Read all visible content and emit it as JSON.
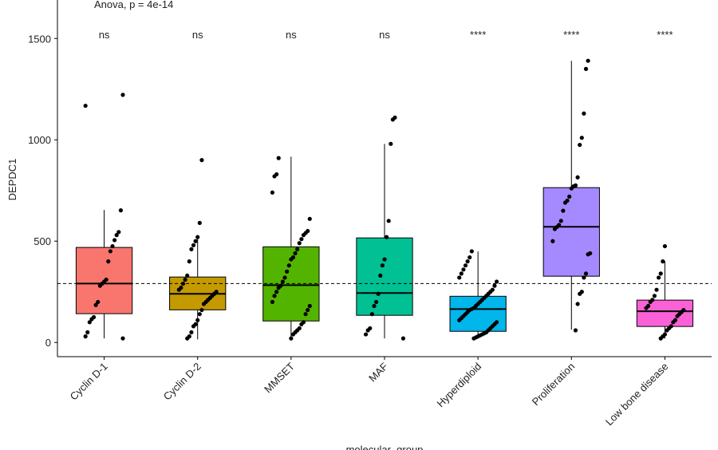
{
  "chart_data": {
    "type": "box",
    "annotation": "Anova, p = 4e-14",
    "ylabel": "DEPDC1",
    "xlabel": "molecular_group",
    "categories": [
      "Cyclin D-1",
      "Cyclin D-2",
      "MMSET",
      "MAF",
      "Hyperdiploid",
      "Proliferation",
      "Low bone disease"
    ],
    "colors": [
      "#F8766D",
      "#C49A00",
      "#53B400",
      "#00C094",
      "#00B6EB",
      "#A58AFF",
      "#FB61D7"
    ],
    "significance": [
      "ns",
      "ns",
      "ns",
      "ns",
      "****",
      "****",
      "****"
    ],
    "boxes": [
      {
        "min": 20,
        "q1": 142,
        "median": 291,
        "q3": 469,
        "max": 654
      },
      {
        "min": 15,
        "q1": 161,
        "median": 240,
        "q3": 323,
        "max": 524
      },
      {
        "min": 20,
        "q1": 106,
        "median": 283,
        "q3": 472,
        "max": 917
      },
      {
        "min": 20,
        "q1": 134,
        "median": 244,
        "q3": 516,
        "max": 980
      },
      {
        "min": 20,
        "q1": 55,
        "median": 165,
        "q3": 228,
        "max": 449
      },
      {
        "min": 63,
        "q1": 327,
        "median": 571,
        "q3": 764,
        "max": 1390
      },
      {
        "min": 20,
        "q1": 79,
        "median": 154,
        "q3": 209,
        "max": 402
      }
    ],
    "points": [
      [
        1168,
        1222,
        652,
        545,
        530,
        505,
        475,
        450,
        400,
        310,
        300,
        290,
        280,
        200,
        185,
        125,
        115,
        100,
        50,
        30,
        20
      ],
      [
        900,
        590,
        520,
        500,
        480,
        460,
        400,
        330,
        310,
        290,
        270,
        260,
        250,
        240,
        230,
        220,
        210,
        200,
        190,
        160,
        140,
        110,
        90,
        80,
        50,
        30,
        20
      ],
      [
        910,
        830,
        820,
        740,
        610,
        550,
        540,
        530,
        510,
        490,
        460,
        440,
        420,
        410,
        380,
        350,
        320,
        300,
        280,
        270,
        250,
        230,
        200,
        180,
        160,
        140,
        100,
        90,
        70,
        60,
        50,
        40,
        20
      ],
      [
        1110,
        1100,
        980,
        600,
        520,
        410,
        380,
        330,
        240,
        200,
        180,
        140,
        70,
        60,
        40,
        20
      ],
      [
        450,
        420,
        400,
        380,
        360,
        340,
        320,
        300,
        280,
        260,
        250,
        240,
        230,
        220,
        210,
        200,
        190,
        180,
        170,
        165,
        160,
        150,
        140,
        130,
        120,
        110,
        100,
        90,
        80,
        70,
        60,
        50,
        45,
        40,
        35,
        30,
        25,
        20
      ],
      [
        1390,
        1350,
        1130,
        1010,
        975,
        815,
        775,
        770,
        760,
        720,
        700,
        690,
        650,
        600,
        580,
        570,
        560,
        500,
        440,
        435,
        340,
        320,
        250,
        240,
        190,
        60
      ],
      [
        475,
        400,
        340,
        320,
        260,
        230,
        210,
        200,
        180,
        170,
        160,
        150,
        140,
        130,
        110,
        100,
        80,
        70,
        60,
        40,
        30,
        20
      ]
    ],
    "hline": 291,
    "ylim": [
      -70,
      1690
    ],
    "yticks": [
      0,
      500,
      1000,
      1500
    ]
  }
}
